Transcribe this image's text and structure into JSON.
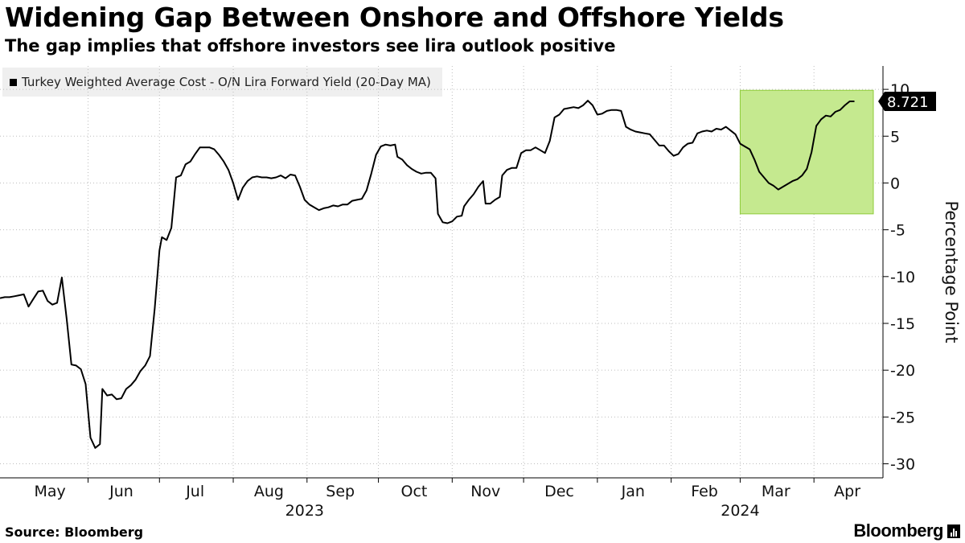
{
  "chart_data": {
    "type": "line",
    "title": "Widening Gap Between Onshore and Offshore Yields",
    "subtitle": "The gap implies that offshore investors see lira outlook positive",
    "ylabel": "Percentage Point",
    "xlabel": "",
    "ylim": [
      -31.5,
      12.5
    ],
    "yticks": [
      10,
      5,
      0,
      -5,
      -10,
      -15,
      -20,
      -25,
      -30
    ],
    "ytick_labels": [
      "10",
      "5",
      "0",
      "-5",
      "-10",
      "-15",
      "-20",
      "-25",
      "-30"
    ],
    "grid": true,
    "x_start": "2023-04-25",
    "x_end": "2024-04-30",
    "month_labels": [
      {
        "label": "May",
        "date": "2023-05-16"
      },
      {
        "label": "Jun",
        "date": "2023-06-15"
      },
      {
        "label": "Jul",
        "date": "2023-07-16"
      },
      {
        "label": "Aug",
        "date": "2023-08-16"
      },
      {
        "label": "Sep",
        "date": "2023-09-15"
      },
      {
        "label": "Oct",
        "date": "2023-10-16"
      },
      {
        "label": "Nov",
        "date": "2023-11-15"
      },
      {
        "label": "Dec",
        "date": "2023-12-16"
      },
      {
        "label": "Jan",
        "date": "2024-01-16"
      },
      {
        "label": "Feb",
        "date": "2024-02-15"
      },
      {
        "label": "Mar",
        "date": "2024-03-16"
      },
      {
        "label": "Apr",
        "date": "2024-04-15"
      }
    ],
    "month_boundaries": [
      "2023-06-01",
      "2023-07-01",
      "2023-08-01",
      "2023-09-01",
      "2023-10-01",
      "2023-11-01",
      "2023-12-01",
      "2024-01-01",
      "2024-02-01",
      "2024-03-01",
      "2024-04-01"
    ],
    "year_labels": [
      {
        "label": "2023",
        "date": "2023-08-31"
      },
      {
        "label": "2024",
        "date": "2024-03-01"
      }
    ],
    "highlight": {
      "x_start": "2024-03-01",
      "x_end": "2024-04-30",
      "y_min": -3.3,
      "y_max": 9.9,
      "fill": "#c5e98f",
      "stroke": "#8fcc3a"
    },
    "last_value_label": "8.721",
    "series": [
      {
        "name": "Turkey Weighted Average Cost - O/N Lira Forward Yield (20-Day MA)",
        "color": "#000000",
        "points": [
          [
            "2023-04-25",
            -12.3
          ],
          [
            "2023-04-27",
            -12.2
          ],
          [
            "2023-04-29",
            -12.2
          ],
          [
            "2023-05-01",
            -12.1
          ],
          [
            "2023-05-03",
            -12.0
          ],
          [
            "2023-05-05",
            -11.9
          ],
          [
            "2023-05-07",
            -13.2
          ],
          [
            "2023-05-09",
            -12.4
          ],
          [
            "2023-05-11",
            -11.6
          ],
          [
            "2023-05-13",
            -11.5
          ],
          [
            "2023-05-15",
            -12.6
          ],
          [
            "2023-05-17",
            -13.0
          ],
          [
            "2023-05-19",
            -12.8
          ],
          [
            "2023-05-21",
            -10.1
          ],
          [
            "2023-05-23",
            -14.5
          ],
          [
            "2023-05-25",
            -19.4
          ],
          [
            "2023-05-27",
            -19.5
          ],
          [
            "2023-05-29",
            -19.9
          ],
          [
            "2023-05-31",
            -21.5
          ],
          [
            "2023-06-02",
            -27.2
          ],
          [
            "2023-06-04",
            -28.3
          ],
          [
            "2023-06-06",
            -27.9
          ],
          [
            "2023-06-07",
            -22.0
          ],
          [
            "2023-06-09",
            -22.7
          ],
          [
            "2023-06-11",
            -22.6
          ],
          [
            "2023-06-13",
            -23.1
          ],
          [
            "2023-06-15",
            -23.0
          ],
          [
            "2023-06-17",
            -22.0
          ],
          [
            "2023-06-19",
            -21.6
          ],
          [
            "2023-06-21",
            -21.0
          ],
          [
            "2023-06-23",
            -20.1
          ],
          [
            "2023-06-25",
            -19.5
          ],
          [
            "2023-06-27",
            -18.5
          ],
          [
            "2023-06-29",
            -13.4
          ],
          [
            "2023-07-01",
            -7.2
          ],
          [
            "2023-07-02",
            -5.8
          ],
          [
            "2023-07-04",
            -6.1
          ],
          [
            "2023-07-06",
            -4.8
          ],
          [
            "2023-07-08",
            0.6
          ],
          [
            "2023-07-10",
            0.8
          ],
          [
            "2023-07-12",
            2.0
          ],
          [
            "2023-07-14",
            2.3
          ],
          [
            "2023-07-16",
            3.1
          ],
          [
            "2023-07-18",
            3.8
          ],
          [
            "2023-07-20",
            3.8
          ],
          [
            "2023-07-22",
            3.8
          ],
          [
            "2023-07-24",
            3.6
          ],
          [
            "2023-07-26",
            3.0
          ],
          [
            "2023-07-28",
            2.3
          ],
          [
            "2023-07-30",
            1.4
          ],
          [
            "2023-08-01",
            0.0
          ],
          [
            "2023-08-03",
            -1.8
          ],
          [
            "2023-08-05",
            -0.5
          ],
          [
            "2023-08-07",
            0.2
          ],
          [
            "2023-08-09",
            0.6
          ],
          [
            "2023-08-11",
            0.7
          ],
          [
            "2023-08-13",
            0.6
          ],
          [
            "2023-08-15",
            0.6
          ],
          [
            "2023-08-17",
            0.5
          ],
          [
            "2023-08-19",
            0.6
          ],
          [
            "2023-08-21",
            0.8
          ],
          [
            "2023-08-23",
            0.5
          ],
          [
            "2023-08-25",
            0.9
          ],
          [
            "2023-08-27",
            0.8
          ],
          [
            "2023-08-29",
            -0.4
          ],
          [
            "2023-08-31",
            -1.8
          ],
          [
            "2023-09-02",
            -2.3
          ],
          [
            "2023-09-04",
            -2.6
          ],
          [
            "2023-09-06",
            -2.9
          ],
          [
            "2023-09-08",
            -2.7
          ],
          [
            "2023-09-10",
            -2.6
          ],
          [
            "2023-09-12",
            -2.4
          ],
          [
            "2023-09-14",
            -2.5
          ],
          [
            "2023-09-16",
            -2.3
          ],
          [
            "2023-09-18",
            -2.3
          ],
          [
            "2023-09-20",
            -1.9
          ],
          [
            "2023-09-22",
            -1.8
          ],
          [
            "2023-09-24",
            -1.7
          ],
          [
            "2023-09-26",
            -0.8
          ],
          [
            "2023-09-28",
            1.0
          ],
          [
            "2023-09-30",
            3.0
          ],
          [
            "2023-10-02",
            3.9
          ],
          [
            "2023-10-04",
            4.1
          ],
          [
            "2023-10-06",
            4.0
          ],
          [
            "2023-10-08",
            4.1
          ],
          [
            "2023-10-09",
            2.8
          ],
          [
            "2023-10-11",
            2.5
          ],
          [
            "2023-10-13",
            1.9
          ],
          [
            "2023-10-15",
            1.5
          ],
          [
            "2023-10-17",
            1.2
          ],
          [
            "2023-10-19",
            1.0
          ],
          [
            "2023-10-21",
            1.1
          ],
          [
            "2023-10-23",
            1.1
          ],
          [
            "2023-10-25",
            0.5
          ],
          [
            "2023-10-26",
            -3.3
          ],
          [
            "2023-10-28",
            -4.2
          ],
          [
            "2023-10-30",
            -4.3
          ],
          [
            "2023-11-01",
            -4.1
          ],
          [
            "2023-11-03",
            -3.6
          ],
          [
            "2023-11-05",
            -3.5
          ],
          [
            "2023-11-06",
            -2.5
          ],
          [
            "2023-11-08",
            -1.8
          ],
          [
            "2023-11-10",
            -1.2
          ],
          [
            "2023-11-12",
            -0.4
          ],
          [
            "2023-11-14",
            0.2
          ],
          [
            "2023-11-15",
            -2.2
          ],
          [
            "2023-11-17",
            -2.2
          ],
          [
            "2023-11-19",
            -1.8
          ],
          [
            "2023-11-21",
            -1.5
          ],
          [
            "2023-11-22",
            0.8
          ],
          [
            "2023-11-24",
            1.4
          ],
          [
            "2023-11-26",
            1.6
          ],
          [
            "2023-11-28",
            1.6
          ],
          [
            "2023-11-30",
            3.2
          ],
          [
            "2023-12-02",
            3.5
          ],
          [
            "2023-12-04",
            3.5
          ],
          [
            "2023-12-06",
            3.8
          ],
          [
            "2023-12-08",
            3.5
          ],
          [
            "2023-12-10",
            3.2
          ],
          [
            "2023-12-12",
            4.5
          ],
          [
            "2023-12-14",
            7.0
          ],
          [
            "2023-12-16",
            7.3
          ],
          [
            "2023-12-18",
            7.9
          ],
          [
            "2023-12-20",
            8.0
          ],
          [
            "2023-12-22",
            8.1
          ],
          [
            "2023-12-24",
            8.0
          ],
          [
            "2023-12-26",
            8.3
          ],
          [
            "2023-12-28",
            8.8
          ],
          [
            "2023-12-30",
            8.3
          ],
          [
            "2024-01-01",
            7.3
          ],
          [
            "2024-01-03",
            7.4
          ],
          [
            "2024-01-05",
            7.7
          ],
          [
            "2024-01-07",
            7.8
          ],
          [
            "2024-01-09",
            7.8
          ],
          [
            "2024-01-11",
            7.7
          ],
          [
            "2024-01-13",
            6.0
          ],
          [
            "2024-01-15",
            5.7
          ],
          [
            "2024-01-17",
            5.5
          ],
          [
            "2024-01-19",
            5.4
          ],
          [
            "2024-01-21",
            5.3
          ],
          [
            "2024-01-23",
            5.2
          ],
          [
            "2024-01-25",
            4.6
          ],
          [
            "2024-01-27",
            4.0
          ],
          [
            "2024-01-29",
            4.0
          ],
          [
            "2024-01-31",
            3.4
          ],
          [
            "2024-02-02",
            2.9
          ],
          [
            "2024-02-04",
            3.1
          ],
          [
            "2024-02-06",
            3.8
          ],
          [
            "2024-02-08",
            4.2
          ],
          [
            "2024-02-10",
            4.3
          ],
          [
            "2024-02-12",
            5.3
          ],
          [
            "2024-02-14",
            5.5
          ],
          [
            "2024-02-16",
            5.6
          ],
          [
            "2024-02-18",
            5.5
          ],
          [
            "2024-02-20",
            5.8
          ],
          [
            "2024-02-22",
            5.7
          ],
          [
            "2024-02-24",
            6.0
          ],
          [
            "2024-02-26",
            5.6
          ],
          [
            "2024-02-28",
            5.2
          ],
          [
            "2024-03-01",
            4.2
          ],
          [
            "2024-03-03",
            3.9
          ],
          [
            "2024-03-05",
            3.6
          ],
          [
            "2024-03-07",
            2.5
          ],
          [
            "2024-03-09",
            1.2
          ],
          [
            "2024-03-11",
            0.6
          ],
          [
            "2024-03-13",
            0.0
          ],
          [
            "2024-03-15",
            -0.3
          ],
          [
            "2024-03-17",
            -0.7
          ],
          [
            "2024-03-19",
            -0.4
          ],
          [
            "2024-03-21",
            -0.1
          ],
          [
            "2024-03-23",
            0.2
          ],
          [
            "2024-03-25",
            0.4
          ],
          [
            "2024-03-27",
            0.8
          ],
          [
            "2024-03-29",
            1.5
          ],
          [
            "2024-03-31",
            3.3
          ],
          [
            "2024-04-02",
            6.1
          ],
          [
            "2024-04-04",
            6.8
          ],
          [
            "2024-04-06",
            7.2
          ],
          [
            "2024-04-08",
            7.1
          ],
          [
            "2024-04-10",
            7.6
          ],
          [
            "2024-04-12",
            7.8
          ],
          [
            "2024-04-14",
            8.3
          ],
          [
            "2024-04-16",
            8.721
          ],
          [
            "2024-04-18",
            8.721
          ]
        ]
      }
    ]
  },
  "footer": {
    "source": "Source: Bloomberg",
    "brand": "Bloomberg"
  }
}
